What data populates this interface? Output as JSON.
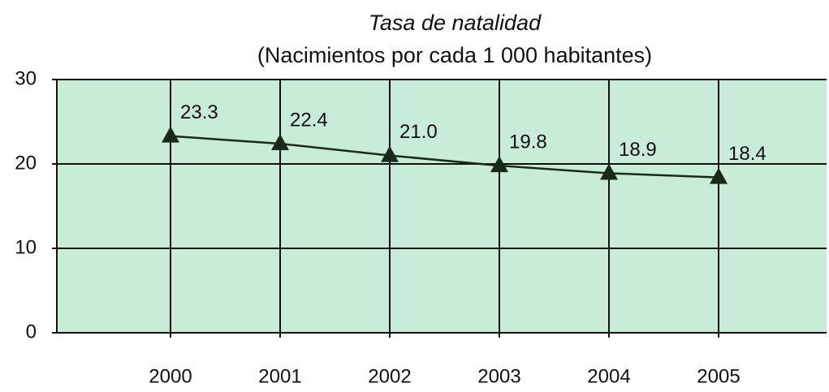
{
  "chart_data": {
    "type": "line",
    "title": "Tasa de natalidad",
    "subtitle": "(Nacimientos por cada 1 000 habitantes)",
    "categories": [
      "2000",
      "2001",
      "2002",
      "2003",
      "2004",
      "2005"
    ],
    "series": [
      {
        "color": "#1a2a1a",
        "values": [
          23.3,
          22.4,
          21.0,
          19.8,
          18.9,
          18.4
        ],
        "value_labels": [
          "23.3",
          "22.4",
          "21.0",
          "19.8",
          "18.9",
          "18.4"
        ]
      }
    ],
    "ylim": [
      0,
      30
    ],
    "yticks": [
      0,
      10,
      20,
      30
    ],
    "grid": true,
    "background": "#c9ecd9"
  }
}
